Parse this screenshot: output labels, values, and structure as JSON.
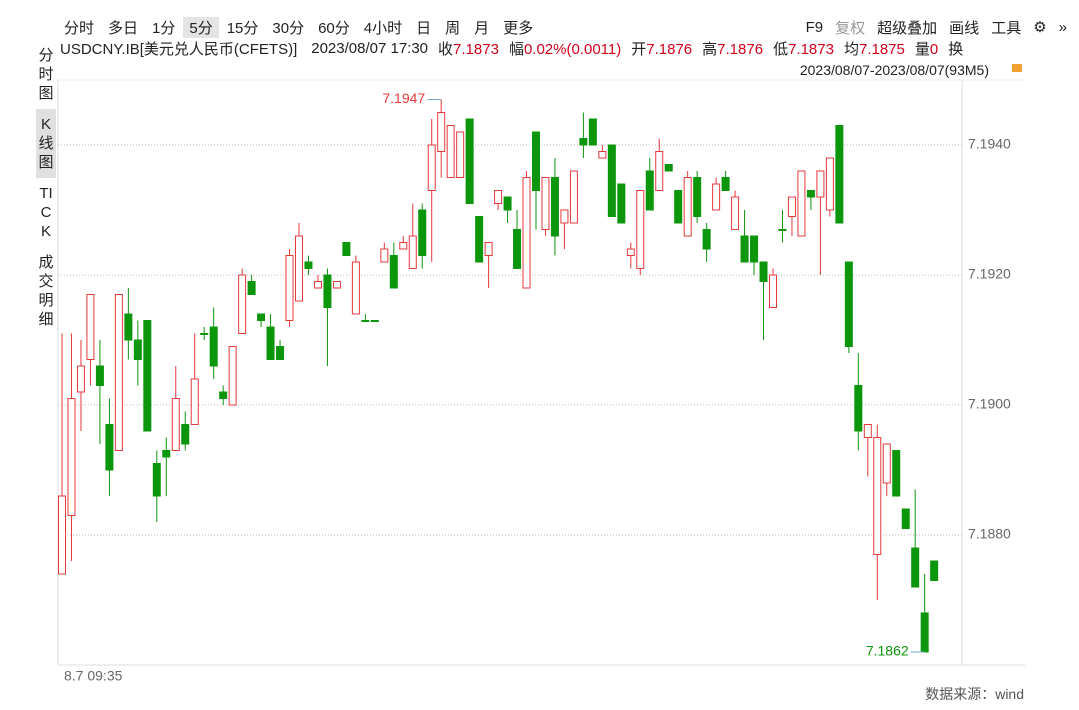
{
  "toolbar": {
    "periods": [
      "分时",
      "多日",
      "1分",
      "5分",
      "15分",
      "30分",
      "60分",
      "4小时",
      "日",
      "周",
      "月",
      "更多"
    ],
    "active": "5分",
    "tools": [
      "F9",
      "复权",
      "超级叠加",
      "画线",
      "工具"
    ]
  },
  "info": {
    "symbol": "USDCNY.IB[美元兑人民币(CFETS)]",
    "datetime": "2023/08/07 17:30",
    "fields": [
      {
        "label": "收",
        "value": "7.1873"
      },
      {
        "label": "幅",
        "value": "0.02%(0.0011)"
      },
      {
        "label": "开",
        "value": "7.1876"
      },
      {
        "label": "高",
        "value": "7.1876"
      },
      {
        "label": "低",
        "value": "7.1873"
      },
      {
        "label": "均",
        "value": "7.1875"
      },
      {
        "label": "量",
        "value": "0"
      },
      {
        "label": "换",
        "value": ""
      }
    ],
    "range": "2023/08/07-2023/08/07(93M5)"
  },
  "sidebar": [
    "分时图",
    "K线图",
    "TICK",
    "成交明细"
  ],
  "source": "数据来源：wind",
  "chart_data": {
    "type": "candlestick",
    "up_color": "#e5393c",
    "down_color": "#0b960b",
    "categories": [
      "8.7 09:35",
      null,
      null,
      null,
      null,
      null,
      null,
      null,
      null,
      null,
      null,
      null,
      null,
      null,
      null,
      null,
      null,
      null,
      null,
      null,
      null,
      null,
      null,
      null,
      null,
      null,
      null,
      null,
      null,
      null,
      null,
      null,
      null,
      null,
      null,
      null,
      null,
      null,
      null,
      null,
      null,
      null,
      null,
      null,
      null,
      null,
      null,
      null,
      null,
      null,
      null,
      null,
      null,
      null,
      null,
      null,
      null,
      null,
      null,
      null,
      null,
      null,
      null,
      null,
      null,
      null,
      null,
      null,
      null,
      null,
      null,
      null,
      null,
      null,
      null,
      null,
      null,
      null,
      null,
      null,
      null,
      null,
      null,
      null,
      null,
      null,
      null,
      null,
      null,
      null,
      null,
      null,
      null
    ],
    "open": [
      7.1874,
      7.1883,
      7.1902,
      7.1907,
      7.1906,
      7.1897,
      7.1893,
      7.1914,
      7.191,
      7.1913,
      7.1891,
      7.1893,
      7.1893,
      7.1897,
      7.1897,
      7.1911,
      7.1912,
      7.1902,
      7.19,
      7.1911,
      7.1919,
      7.1914,
      7.1912,
      7.1909,
      7.1913,
      7.1916,
      7.1922,
      7.1918,
      7.192,
      7.1918,
      7.1925,
      7.1914,
      7.1913,
      7.1913,
      7.1922,
      7.1923,
      7.1924,
      7.1921,
      7.193,
      7.1933,
      7.1939,
      7.1935,
      7.1935,
      7.1944,
      7.1929,
      7.1923,
      7.1931,
      7.1932,
      7.1927,
      7.1918,
      7.1942,
      7.1927,
      7.1935,
      7.1928,
      7.1928,
      7.1941,
      7.1944,
      7.1938,
      7.194,
      7.1934,
      7.1923,
      7.1921,
      7.1936,
      7.1933,
      7.1937,
      7.1933,
      7.1926,
      7.1935,
      7.1927,
      7.193,
      7.1935,
      7.1927,
      7.1926,
      7.1926,
      7.1922,
      7.1915,
      7.1927,
      7.1929,
      7.1926,
      7.1933,
      7.1932,
      7.193,
      7.1943,
      7.1922,
      7.1903,
      7.1895,
      7.1877,
      7.1888,
      7.1893,
      7.1884,
      7.1878,
      7.1868,
      7.1876
    ],
    "high": [
      7.1911,
      7.1911,
      7.191,
      7.1917,
      7.191,
      7.1901,
      7.1917,
      7.1918,
      7.1913,
      7.1913,
      7.1893,
      7.1895,
      7.1906,
      7.1899,
      7.1911,
      7.1912,
      7.1915,
      7.1903,
      7.1909,
      7.1921,
      7.192,
      7.1914,
      7.1914,
      7.191,
      7.1924,
      7.1928,
      7.1923,
      7.192,
      7.1921,
      7.1919,
      7.1925,
      7.1923,
      7.1914,
      7.1913,
      7.1925,
      7.1925,
      7.1926,
      7.1931,
      7.1931,
      7.1944,
      7.1947,
      7.1943,
      7.1942,
      7.1944,
      7.1929,
      7.1925,
      7.1933,
      7.1932,
      7.193,
      7.1936,
      7.1942,
      7.1935,
      7.1938,
      7.193,
      7.1936,
      7.1945,
      7.1944,
      7.194,
      7.194,
      7.1934,
      7.1925,
      7.1933,
      7.1938,
      7.1941,
      7.1937,
      7.1933,
      7.1936,
      7.1936,
      7.1928,
      7.1935,
      7.1936,
      7.1933,
      7.193,
      7.1926,
      7.1922,
      7.1921,
      7.193,
      7.1932,
      7.1936,
      7.1933,
      7.1936,
      7.1938,
      7.1943,
      7.1922,
      7.1908,
      7.1897,
      7.1897,
      7.1894,
      7.1893,
      7.1884,
      7.1887,
      7.1874,
      7.1876
    ],
    "low": [
      7.1874,
      7.1876,
      7.1896,
      7.1903,
      7.1894,
      7.1886,
      7.1893,
      7.1907,
      7.1903,
      7.1896,
      7.1882,
      7.1886,
      7.1893,
      7.1893,
      7.1897,
      7.191,
      7.1904,
      7.19,
      7.19,
      7.1911,
      7.1917,
      7.1912,
      7.1907,
      7.1907,
      7.1912,
      7.1916,
      7.192,
      7.1918,
      7.1906,
      7.1918,
      7.1923,
      7.1914,
      7.1913,
      7.1913,
      7.1922,
      7.1918,
      7.1924,
      7.1921,
      7.1921,
      7.1922,
      7.1935,
      7.1935,
      7.1935,
      7.1931,
      7.1922,
      7.1918,
      7.193,
      7.1928,
      7.1921,
      7.1918,
      7.1927,
      7.1926,
      7.1923,
      7.1924,
      7.1928,
      7.1938,
      7.194,
      7.1938,
      7.1929,
      7.1928,
      7.1921,
      7.192,
      7.193,
      7.1933,
      7.1936,
      7.1928,
      7.1926,
      7.1928,
      7.1922,
      7.193,
      7.1933,
      7.1927,
      7.1922,
      7.192,
      7.191,
      7.1915,
      7.1925,
      7.1926,
      7.1926,
      7.193,
      7.192,
      7.1929,
      7.1928,
      7.1908,
      7.1893,
      7.1889,
      7.187,
      7.1886,
      7.1886,
      7.1881,
      7.1872,
      7.1862,
      7.1873
    ],
    "close": [
      7.1886,
      7.1901,
      7.1906,
      7.1917,
      7.1903,
      7.189,
      7.1917,
      7.191,
      7.1907,
      7.1896,
      7.1886,
      7.1892,
      7.1901,
      7.1894,
      7.1904,
      7.1911,
      7.1906,
      7.1901,
      7.1909,
      7.192,
      7.1917,
      7.1913,
      7.1907,
      7.1907,
      7.1923,
      7.1926,
      7.1921,
      7.1919,
      7.1915,
      7.1919,
      7.1923,
      7.1922,
      7.1913,
      7.1913,
      7.1924,
      7.1918,
      7.1925,
      7.1926,
      7.1923,
      7.194,
      7.1945,
      7.1943,
      7.1942,
      7.1931,
      7.1922,
      7.1925,
      7.1933,
      7.193,
      7.1921,
      7.1935,
      7.1933,
      7.1935,
      7.1926,
      7.193,
      7.1936,
      7.194,
      7.194,
      7.1939,
      7.1929,
      7.1928,
      7.1924,
      7.1933,
      7.193,
      7.1939,
      7.1936,
      7.1928,
      7.1935,
      7.1929,
      7.1924,
      7.1934,
      7.1933,
      7.1932,
      7.1922,
      7.1922,
      7.1919,
      7.192,
      7.1927,
      7.1932,
      7.1936,
      7.1932,
      7.1936,
      7.1938,
      7.1928,
      7.1909,
      7.1896,
      7.1897,
      7.1895,
      7.1894,
      7.1886,
      7.1881,
      7.1872,
      7.1862,
      7.1873
    ],
    "ylim": [
      7.186,
      7.195
    ],
    "yticks": [
      {
        "value": 7.188,
        "label": "7.1880"
      },
      {
        "value": 7.19,
        "label": "7.1900"
      },
      {
        "value": 7.192,
        "label": "7.1920"
      },
      {
        "value": 7.194,
        "label": "7.1940"
      }
    ],
    "grid": true,
    "annotations": [
      "7.1947",
      "7.1862"
    ]
  }
}
